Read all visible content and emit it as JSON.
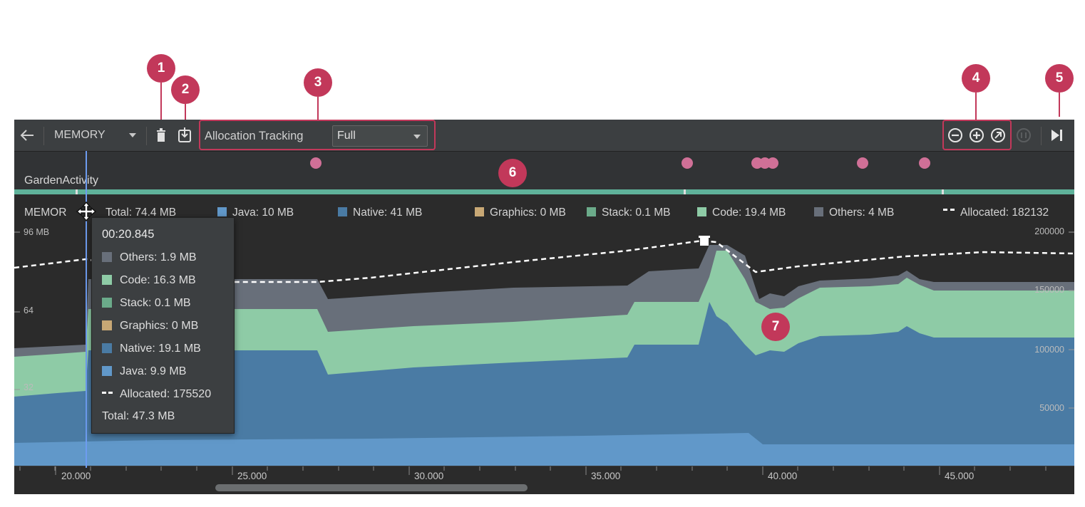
{
  "callouts": [
    "1",
    "2",
    "3",
    "4",
    "5",
    "6",
    "7"
  ],
  "toolbar": {
    "back_icon": "arrow-left-icon",
    "profiler_label": "MEMORY",
    "gc_icon": "trash-icon",
    "dump_icon": "heap-dump-icon",
    "allocation_label": "Allocation Tracking",
    "allocation_value": "Full",
    "zoom_out_icon": "zoom-out-icon",
    "zoom_in_icon": "zoom-in-icon",
    "reset_zoom_icon": "reset-zoom-icon",
    "live_icon": "jump-to-live-icon"
  },
  "activity_label": "GardenActivity",
  "legend": {
    "title": "MEMOR",
    "total": "Total: 74.4 MB",
    "java": "Java: 10 MB",
    "native": "Native: 41 MB",
    "graphics": "Graphics: 0 MB",
    "stack": "Stack: 0.1 MB",
    "code": "Code: 19.4 MB",
    "others": "Others: 4 MB",
    "allocated": "Allocated: 182132"
  },
  "left_axis": [
    "96 MB",
    "64",
    "32"
  ],
  "right_axis": [
    "200000",
    "150000",
    "100000",
    "50000"
  ],
  "time_ticks": [
    "20.000",
    "25.000",
    "30.000",
    "35.000",
    "40.000",
    "45.000"
  ],
  "tooltip": {
    "time": "00:20.845",
    "others": "Others: 1.9 MB",
    "code": "Code: 16.3 MB",
    "stack": "Stack: 0.1 MB",
    "graphics": "Graphics: 0 MB",
    "native": "Native: 19.1 MB",
    "java": "Java: 9.9 MB",
    "allocated": "Allocated: 175520",
    "total": "Total: 47.3 MB"
  },
  "colors": {
    "java": "#6198c9",
    "native": "#4a7ba4",
    "graphics": "#c8a875",
    "stack": "#6bab8a",
    "code": "#8ecba6",
    "others": "#686f7a",
    "callout": "#c2385a",
    "lane": "#5fb29a",
    "event_dot": "#d07097"
  }
}
